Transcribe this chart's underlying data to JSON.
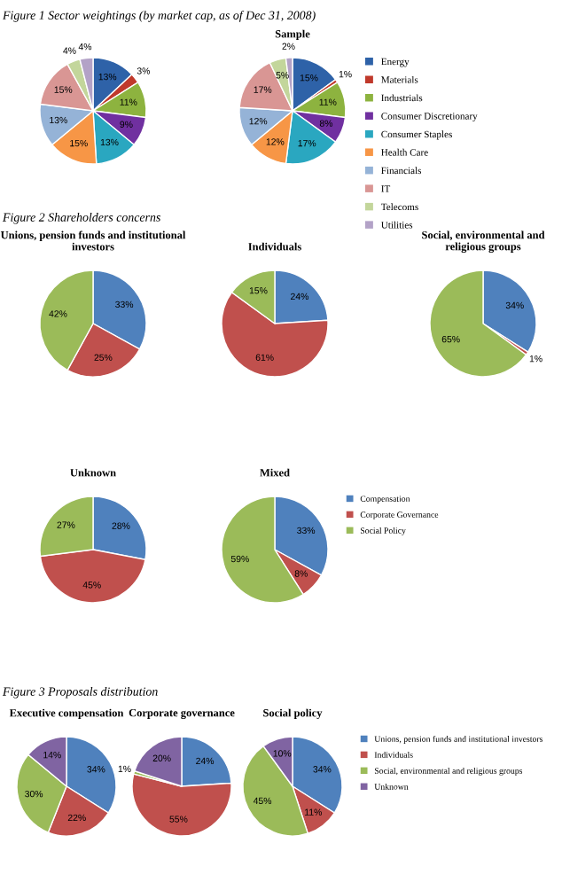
{
  "chart_data": [
    {
      "type": "pie",
      "annotations": [
        "Figure 1 Sector weightings (by market cap, as of Dec 31, 2008)"
      ],
      "categories": [
        null,
        null,
        null,
        null,
        null,
        null,
        null,
        null,
        null,
        null
      ],
      "values": [
        13,
        3,
        11,
        9,
        13,
        15,
        13,
        15,
        4,
        4
      ],
      "value_labels": [
        "13%",
        "3%",
        "11%",
        "9%",
        "13%",
        "15%",
        "13%",
        "15%",
        "4%",
        "4%"
      ],
      "colors": [
        "#2e62a8",
        "#c0392b",
        "#8db33f",
        "#7030a0",
        "#2aa7c0",
        "#f79646",
        "#95b3d7",
        "#d99694",
        "#c3d69b",
        "#b3a2c7"
      ]
    },
    {
      "type": "pie",
      "title": "Sample",
      "legend": "right",
      "categories": [
        "Energy",
        "Materials",
        "Industrials",
        "Consumer Discretionary",
        "Consumer Staples",
        "Health Care",
        "Financials",
        "IT",
        "Telecoms",
        "Utilities"
      ],
      "values": [
        15,
        1,
        11,
        8,
        17,
        12,
        12,
        17,
        5,
        2
      ],
      "value_labels": [
        "15%",
        "1%",
        "11%",
        "8%",
        "17%",
        "12%",
        "12%",
        "17%",
        "5%",
        "2%"
      ],
      "colors": [
        "#2e62a8",
        "#c0392b",
        "#8db33f",
        "#7030a0",
        "#2aa7c0",
        "#f79646",
        "#95b3d7",
        "#d99694",
        "#c3d69b",
        "#b3a2c7"
      ]
    },
    {
      "type": "pie",
      "title": "Unions, pension funds and institutional investors",
      "annotations": [
        "Figure 2 Shareholders concerns"
      ],
      "categories": [
        null,
        null,
        null
      ],
      "values": [
        33,
        25,
        42
      ],
      "value_labels": [
        "33%",
        "25%",
        "42%"
      ],
      "colors": [
        "#4f81bd",
        "#c0504d",
        "#9bbb59"
      ]
    },
    {
      "type": "pie",
      "title": "Individuals",
      "categories": [
        null,
        null,
        null
      ],
      "values": [
        24,
        61,
        15
      ],
      "value_labels": [
        "24%",
        "61%",
        "15%"
      ],
      "colors": [
        "#4f81bd",
        "#c0504d",
        "#9bbb59"
      ]
    },
    {
      "type": "pie",
      "title": "Social, environmental and religious groups",
      "categories": [
        null,
        null,
        null
      ],
      "values": [
        34,
        1,
        65
      ],
      "value_labels": [
        "34%",
        "1%",
        "65%"
      ],
      "colors": [
        "#4f81bd",
        "#c0504d",
        "#9bbb59"
      ]
    },
    {
      "type": "pie",
      "title": "Unknown",
      "categories": [
        null,
        null,
        null
      ],
      "values": [
        28,
        45,
        27
      ],
      "value_labels": [
        "28%",
        "45%",
        "27%"
      ],
      "colors": [
        "#4f81bd",
        "#c0504d",
        "#9bbb59"
      ]
    },
    {
      "type": "pie",
      "title": "Mixed",
      "legend": "right",
      "categories": [
        "Compensation",
        "Corporate Governance",
        "Social Policy"
      ],
      "values": [
        33,
        8,
        59
      ],
      "value_labels": [
        "33%",
        "8%",
        "59%"
      ],
      "colors": [
        "#4f81bd",
        "#c0504d",
        "#9bbb59"
      ]
    },
    {
      "type": "pie",
      "title": "Executive compensation",
      "annotations": [
        "Figure 3 Proposals distribution"
      ],
      "categories": [
        null,
        null,
        null,
        null
      ],
      "values": [
        34,
        22,
        30,
        14
      ],
      "value_labels": [
        "34%",
        "22%",
        "30%",
        "14%"
      ],
      "colors": [
        "#4f81bd",
        "#c0504d",
        "#9bbb59",
        "#8064a2"
      ]
    },
    {
      "type": "pie",
      "title": "Corporate governance",
      "categories": [
        null,
        null,
        null,
        null
      ],
      "values": [
        24,
        55,
        1,
        20
      ],
      "value_labels": [
        "24%",
        "55%",
        "1%",
        "20%"
      ],
      "colors": [
        "#4f81bd",
        "#c0504d",
        "#9bbb59",
        "#8064a2"
      ]
    },
    {
      "type": "pie",
      "title": "Social policy",
      "legend": "right",
      "categories": [
        "Unions, pension funds and institutional investors",
        "Individuals",
        "Social, environmental and religious groups",
        "Unknown"
      ],
      "values": [
        34,
        11,
        45,
        10
      ],
      "value_labels": [
        "34%",
        "11%",
        "45%",
        "10%"
      ],
      "colors": [
        "#4f81bd",
        "#c0504d",
        "#9bbb59",
        "#8064a2"
      ]
    }
  ]
}
